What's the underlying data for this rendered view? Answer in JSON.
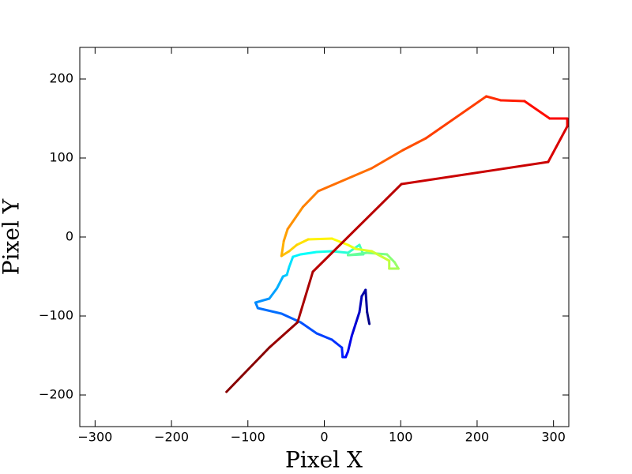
{
  "chart_data": {
    "type": "line",
    "colormap": "jet",
    "line_width": 3,
    "x_label": "Pixel X",
    "y_label": "Pixel Y",
    "x": [
      59,
      56,
      54,
      49,
      46,
      41,
      36,
      31,
      28,
      24,
      23,
      10,
      -10,
      -31,
      -56,
      -87,
      -90,
      -72,
      -62,
      -54,
      -49,
      -46,
      -41,
      -31,
      -10,
      10,
      31,
      46,
      51,
      31,
      56,
      82,
      92,
      97,
      85,
      85,
      62,
      41,
      31,
      10,
      -21,
      -36,
      -46,
      -56,
      -53,
      -48,
      -28,
      -8,
      62,
      103,
      133,
      212,
      231,
      262,
      295,
      318,
      318,
      293,
      101,
      -15,
      -35,
      -72,
      -128
    ],
    "y": [
      -110,
      -95,
      -67,
      -75,
      -95,
      -110,
      -125,
      -145,
      -152,
      -152,
      -140,
      -130,
      -122,
      -108,
      -97,
      -90,
      -83,
      -78,
      -65,
      -50,
      -48,
      -38,
      -25,
      -22,
      -19,
      -18,
      -20,
      -10,
      -22,
      -23,
      -20,
      -22,
      -32,
      -40,
      -40,
      -30,
      -18,
      -15,
      -10,
      -2,
      -3,
      -10,
      -18,
      -24,
      -5,
      10,
      38,
      58,
      87,
      110,
      125,
      178,
      173,
      172,
      150,
      150,
      140,
      95,
      67,
      -44,
      -108,
      -140,
      -196
    ],
    "xlim": [
      -320,
      320
    ],
    "ylim": [
      -240,
      240
    ],
    "xticks": [
      {
        "value": -300,
        "label": "−300"
      },
      {
        "value": -200,
        "label": "−200"
      },
      {
        "value": -100,
        "label": "−100"
      },
      0,
      100,
      200,
      300
    ],
    "yticks": [
      {
        "value": -200,
        "label": "−200"
      },
      {
        "value": -100,
        "label": "−100"
      },
      0,
      100,
      200
    ]
  }
}
